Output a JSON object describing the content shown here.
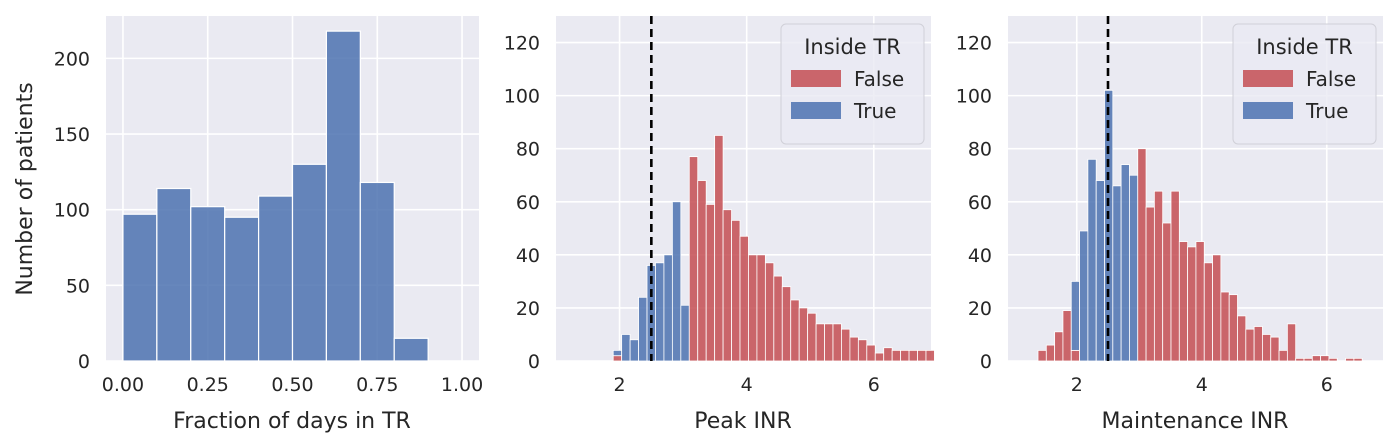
{
  "chart_data": [
    {
      "type": "bar",
      "title": "",
      "xlabel": "Fraction of days in TR",
      "ylabel": "Number of patients",
      "xlim": [
        -0.05,
        1.05
      ],
      "ylim": [
        0,
        228
      ],
      "xticks": [
        0.0,
        0.25,
        0.5,
        0.75,
        1.0
      ],
      "xtick_labels": [
        "0.00",
        "0.25",
        "0.50",
        "0.75",
        "1.00"
      ],
      "yticks": [
        0,
        50,
        100,
        150,
        200
      ],
      "ytick_labels": [
        "0",
        "50",
        "100",
        "150",
        "200"
      ],
      "grid": true,
      "colors": {
        "bars": "#4C72B0",
        "background": "#EAEAF2",
        "grid": "#FFFFFF"
      },
      "bin_width": 0.1,
      "bin_starts": [
        0.0,
        0.1,
        0.2,
        0.3,
        0.4,
        0.5,
        0.6,
        0.7,
        0.8,
        0.9
      ],
      "values": [
        97,
        114,
        102,
        95,
        109,
        130,
        218,
        118,
        15,
        0
      ]
    },
    {
      "type": "bar",
      "title": "",
      "xlabel": "Peak INR",
      "ylabel": "",
      "xlim": [
        1.0,
        6.9
      ],
      "ylim": [
        0,
        130
      ],
      "xticks": [
        2,
        4,
        6
      ],
      "xtick_labels": [
        "2",
        "4",
        "6"
      ],
      "yticks": [
        0,
        20,
        40,
        60,
        80,
        100,
        120
      ],
      "ytick_labels": [
        "0",
        "20",
        "40",
        "60",
        "80",
        "100",
        "120"
      ],
      "grid": true,
      "stacked": true,
      "legend": {
        "title": "Inside TR",
        "position": "top-right"
      },
      "vline": 2.5,
      "bin_width": 0.133,
      "bin_starts": [
        1.9,
        2.033,
        2.166,
        2.299,
        2.432,
        2.565,
        2.698,
        2.831,
        2.964,
        3.097,
        3.23,
        3.363,
        3.496,
        3.629,
        3.762,
        3.895,
        4.028,
        4.161,
        4.294,
        4.427,
        4.56,
        4.693,
        4.826,
        4.959,
        5.092,
        5.225,
        5.358,
        5.491,
        5.624,
        5.757,
        5.89,
        6.023,
        6.156,
        6.289,
        6.422,
        6.555,
        6.688,
        6.821
      ],
      "series": [
        {
          "name": "False",
          "color": "#C44E52",
          "values": [
            2,
            0,
            0,
            0,
            0,
            0,
            0,
            0,
            0,
            77,
            68,
            59,
            85,
            57,
            53,
            47,
            40,
            40,
            37,
            32,
            28,
            23,
            20,
            18,
            14,
            14,
            14,
            12,
            9,
            8,
            6,
            3,
            5,
            4,
            4,
            4,
            4,
            4
          ]
        },
        {
          "name": "True",
          "color": "#4C72B0",
          "values": [
            2,
            10,
            8,
            24,
            36,
            37,
            40,
            60,
            21,
            0,
            0,
            0,
            0,
            0,
            0,
            0,
            0,
            0,
            0,
            0,
            0,
            0,
            0,
            0,
            0,
            0,
            0,
            0,
            0,
            0,
            0,
            0,
            0,
            0,
            0,
            0,
            0,
            0
          ]
        }
      ]
    },
    {
      "type": "bar",
      "title": "",
      "xlabel": "Maintenance INR",
      "ylabel": "",
      "xlim": [
        0.9,
        6.9
      ],
      "ylim": [
        0,
        130
      ],
      "xticks": [
        2,
        4,
        6
      ],
      "xtick_labels": [
        "2",
        "4",
        "6"
      ],
      "yticks": [
        0,
        20,
        40,
        60,
        80,
        100,
        120
      ],
      "ytick_labels": [
        "0",
        "20",
        "40",
        "60",
        "80",
        "100",
        "120"
      ],
      "grid": true,
      "stacked": true,
      "legend": {
        "title": "Inside TR",
        "position": "top-right"
      },
      "vline": 2.5,
      "bin_width": 0.133,
      "bin_starts": [
        1.38,
        1.513,
        1.646,
        1.779,
        1.912,
        2.045,
        2.178,
        2.311,
        2.444,
        2.577,
        2.71,
        2.843,
        2.976,
        3.109,
        3.242,
        3.375,
        3.508,
        3.641,
        3.774,
        3.907,
        4.04,
        4.173,
        4.306,
        4.439,
        4.572,
        4.705,
        4.838,
        4.971,
        5.104,
        5.237,
        5.37,
        5.503,
        5.636,
        5.769,
        5.902,
        6.035,
        6.168,
        6.301,
        6.434,
        6.567
      ],
      "series": [
        {
          "name": "False",
          "color": "#C44E52",
          "values": [
            4,
            6,
            11,
            19,
            4,
            0,
            0,
            0,
            0,
            0,
            0,
            0,
            80,
            58,
            64,
            52,
            64,
            45,
            43,
            45,
            37,
            40,
            26,
            25,
            17,
            12,
            13,
            10,
            9,
            4,
            14,
            1,
            1,
            2,
            2,
            1,
            0,
            1,
            1,
            0
          ]
        },
        {
          "name": "True",
          "color": "#4C72B0",
          "values": [
            0,
            0,
            0,
            0,
            26,
            49,
            76,
            68,
            102,
            66,
            74,
            70,
            0,
            0,
            0,
            0,
            0,
            0,
            0,
            0,
            0,
            0,
            0,
            0,
            0,
            0,
            0,
            0,
            0,
            0,
            0,
            0,
            0,
            0,
            0,
            0,
            0,
            0,
            0,
            0
          ]
        }
      ]
    }
  ]
}
